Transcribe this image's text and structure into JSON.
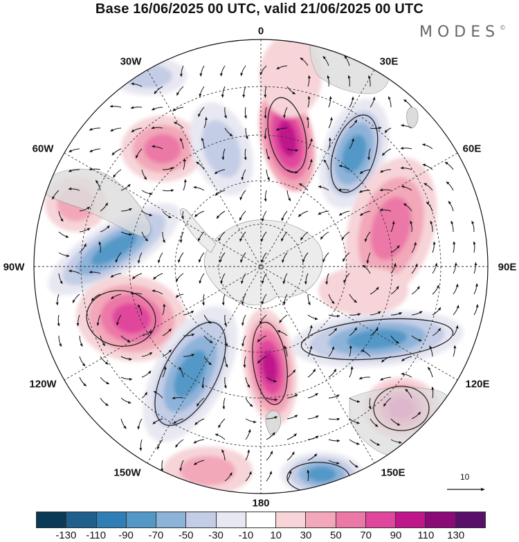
{
  "title": "Base 16/06/2025 00 UTC, valid 21/06/2025 00 UTC",
  "brand": "MODES",
  "brand_mark": "©",
  "longitude_labels": {
    "lon_0": "0",
    "lon_30e": "30E",
    "lon_60e": "60E",
    "lon_90e": "90E",
    "lon_120e": "120E",
    "lon_150e": "150E",
    "lon_180": "180",
    "lon_150w": "150W",
    "lon_120w": "120W",
    "lon_90w": "90W",
    "lon_60w": "60W",
    "lon_30w": "30W"
  },
  "reference_vector_label": "10",
  "colorbar": {
    "colors": [
      "#0b3a57",
      "#1e5f8c",
      "#2f7fb6",
      "#5398c7",
      "#8eb3d9",
      "#c4cde6",
      "#e8e8f2",
      "#ffffff",
      "#f6d4d8",
      "#f2a8b8",
      "#ec78a8",
      "#e0479c",
      "#c0168c",
      "#8b0a78",
      "#5a0f6a"
    ],
    "tick_labels": [
      "-130",
      "-110",
      "-90",
      "-70",
      "-50",
      "-30",
      "-10",
      "10",
      "30",
      "50",
      "70",
      "90",
      "110",
      "130"
    ]
  },
  "colors": {
    "land": "#e9e9e9",
    "ocean_bg": "#ffffff",
    "grid": "#333333"
  }
}
